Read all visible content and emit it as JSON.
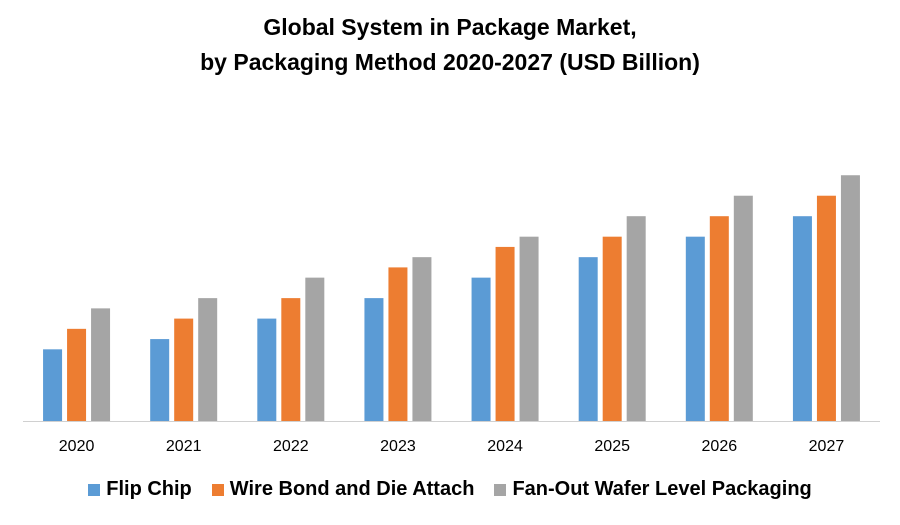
{
  "chart_data": {
    "type": "bar",
    "title_line1": "Global System in Package Market,",
    "title_line2": "by Packaging Method 2020-2027 (USD Billion)",
    "xlabel": "",
    "ylabel": "",
    "categories": [
      "2020",
      "2021",
      "2022",
      "2023",
      "2024",
      "2025",
      "2026",
      "2027"
    ],
    "series": [
      {
        "name": "Flip Chip",
        "color": "#5B9BD5",
        "values": [
          3.5,
          4,
          5,
          6,
          7,
          8,
          9,
          10
        ]
      },
      {
        "name": "Wire Bond and Die Attach",
        "color": "#ED7D31",
        "values": [
          4.5,
          5,
          6,
          7.5,
          8.5,
          9,
          10,
          11
        ]
      },
      {
        "name": "Fan-Out Wafer Level Packaging",
        "color": "#A5A5A5",
        "values": [
          5.5,
          6,
          7,
          8,
          9,
          10,
          11,
          12
        ]
      }
    ],
    "ylim": [
      0,
      12.5
    ],
    "y_axis_visible": false,
    "grid": false,
    "legend_position": "bottom"
  }
}
